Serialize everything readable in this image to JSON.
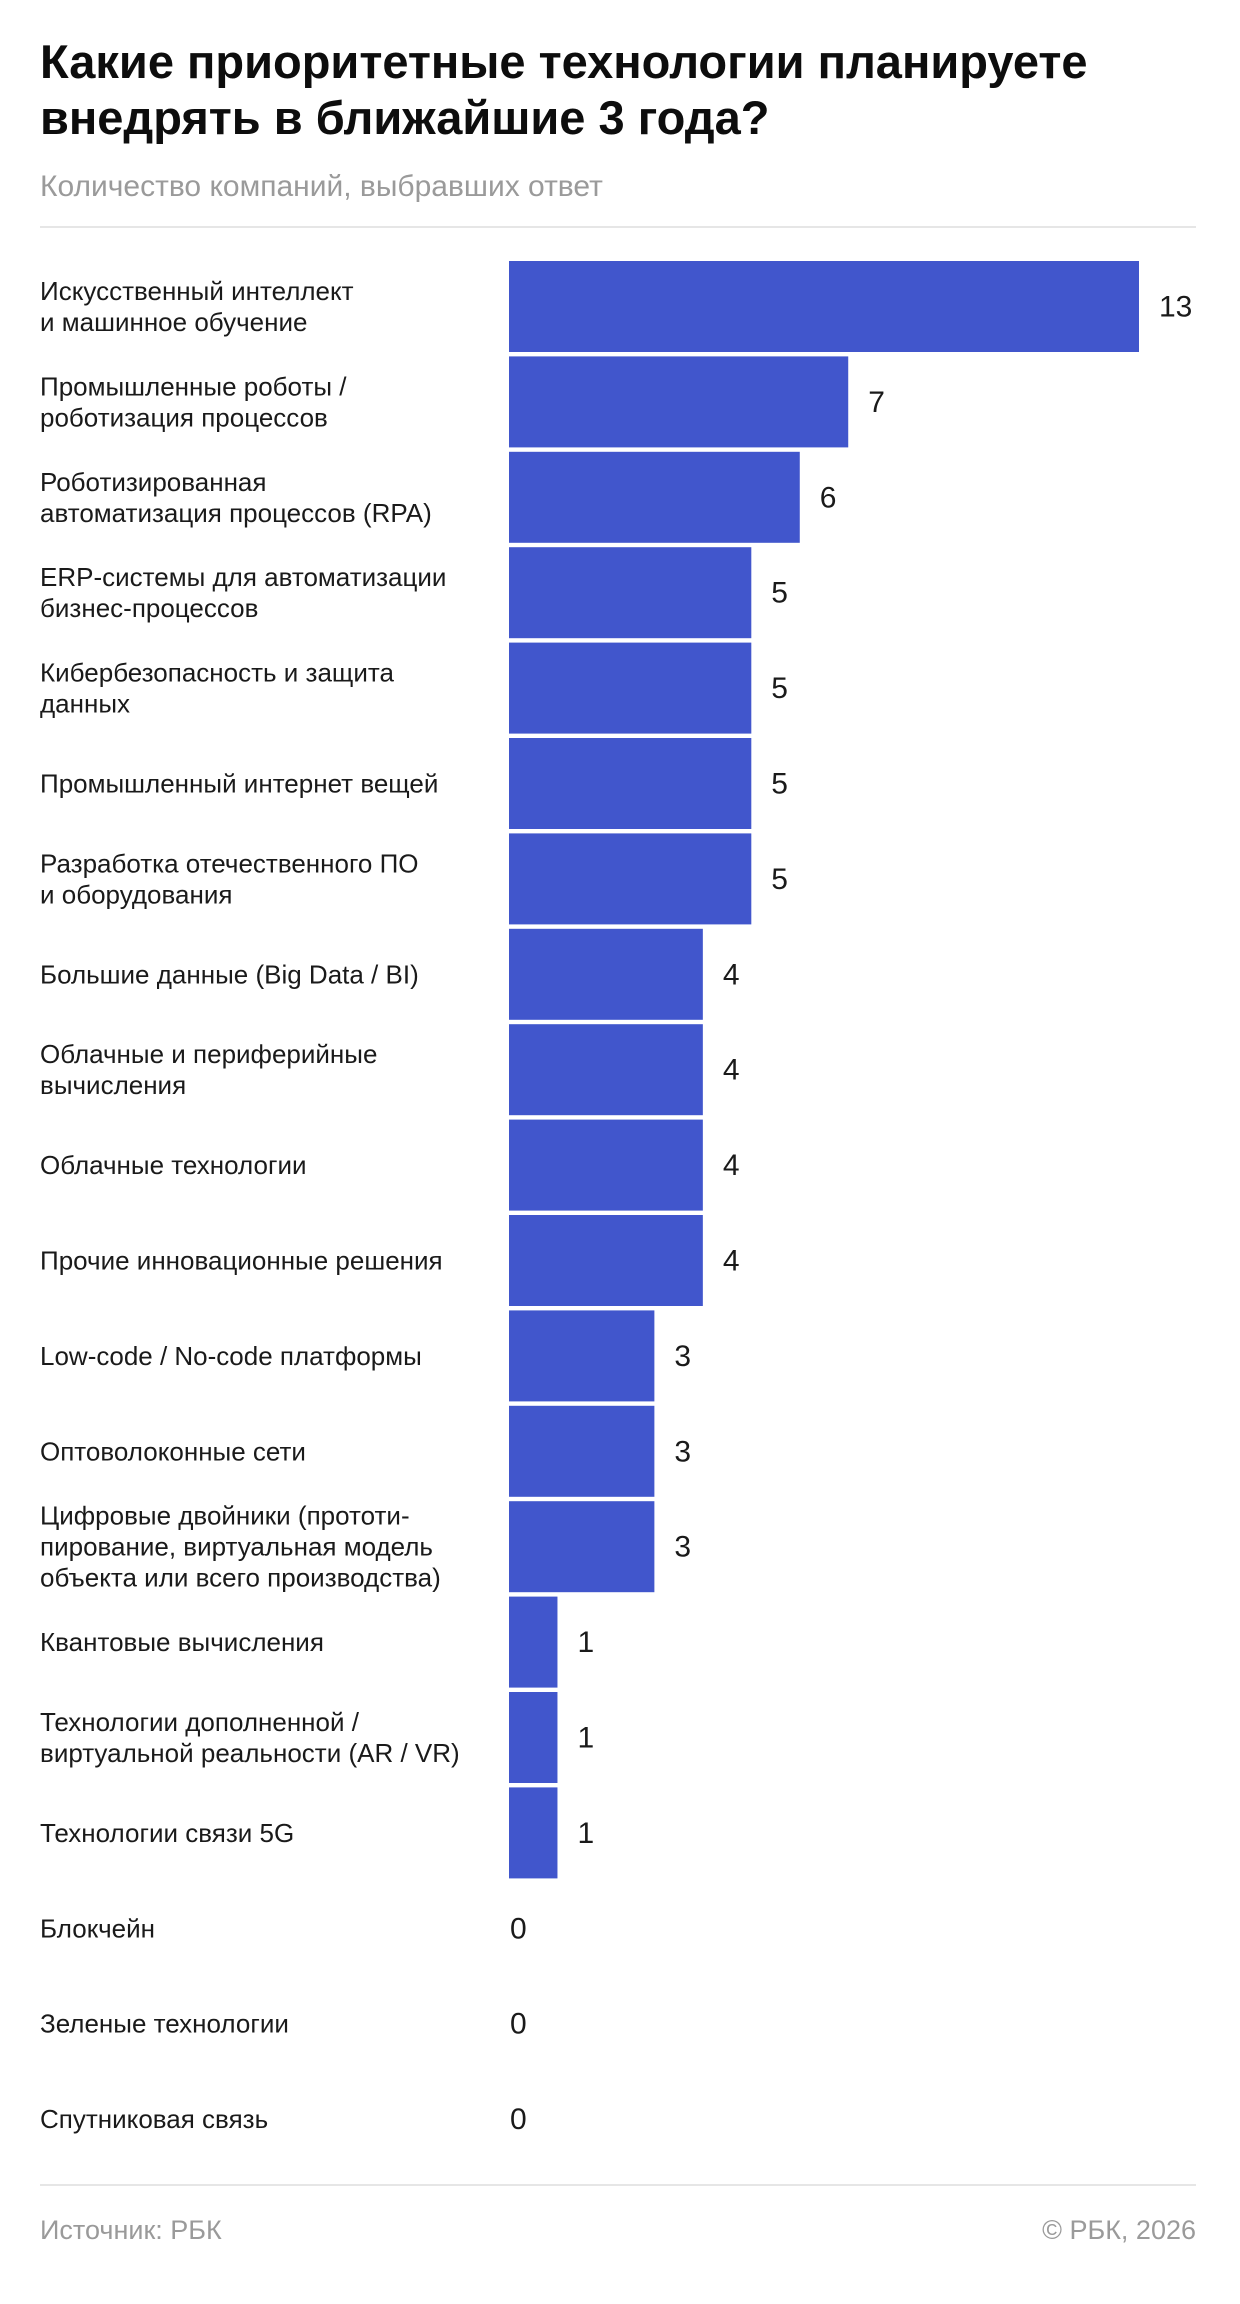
{
  "title": "Какие приоритетные технологии планируете внедрять в ближайшие 3 года?",
  "subtitle": "Количество компаний, выбравших ответ",
  "source": "Источник: РБК",
  "copyright": "© РБК, 2026",
  "chart_data": {
    "type": "bar",
    "orientation": "horizontal",
    "title": "Какие приоритетные технологии планируете внедрять в ближайшие 3 года?",
    "subtitle": "Количество компаний, выбравших ответ",
    "bar_color": "#4156cc",
    "xlim": [
      0,
      13
    ],
    "grid": false,
    "categories": [
      [
        "Искусственный интеллект",
        "и машинное обучение"
      ],
      [
        "Промышленные роботы /",
        "роботизация процессов"
      ],
      [
        "Роботизированная",
        "автоматизация процессов (RPA)"
      ],
      [
        "ERP-системы для автоматизации",
        "бизнес-процессов"
      ],
      [
        "Кибербезопасность и защита",
        "данных"
      ],
      [
        "Промышленный интернет вещей"
      ],
      [
        "Разработка отечественного ПО",
        "и оборудования"
      ],
      [
        "Большие данные (Big Data / BI)"
      ],
      [
        "Облачные и периферийные",
        "вычисления"
      ],
      [
        "Облачные технологии"
      ],
      [
        "Прочие инновационные решения"
      ],
      [
        "Low-code / No-code платформы"
      ],
      [
        "Оптоволоконные сети"
      ],
      [
        "Цифровые двойники (прототи-",
        "пирование, виртуальная модель",
        "объекта или всего производства)"
      ],
      [
        "Квантовые вычисления"
      ],
      [
        "Технологии дополненной /",
        "виртуальной реальности (AR / VR)"
      ],
      [
        "Технологии связи 5G"
      ],
      [
        "Блокчейн"
      ],
      [
        "Зеленые технологии"
      ],
      [
        "Спутниковая связь"
      ]
    ],
    "values": [
      13,
      7,
      6,
      5,
      5,
      5,
      5,
      4,
      4,
      4,
      4,
      3,
      3,
      3,
      1,
      1,
      1,
      0,
      0,
      0
    ]
  }
}
